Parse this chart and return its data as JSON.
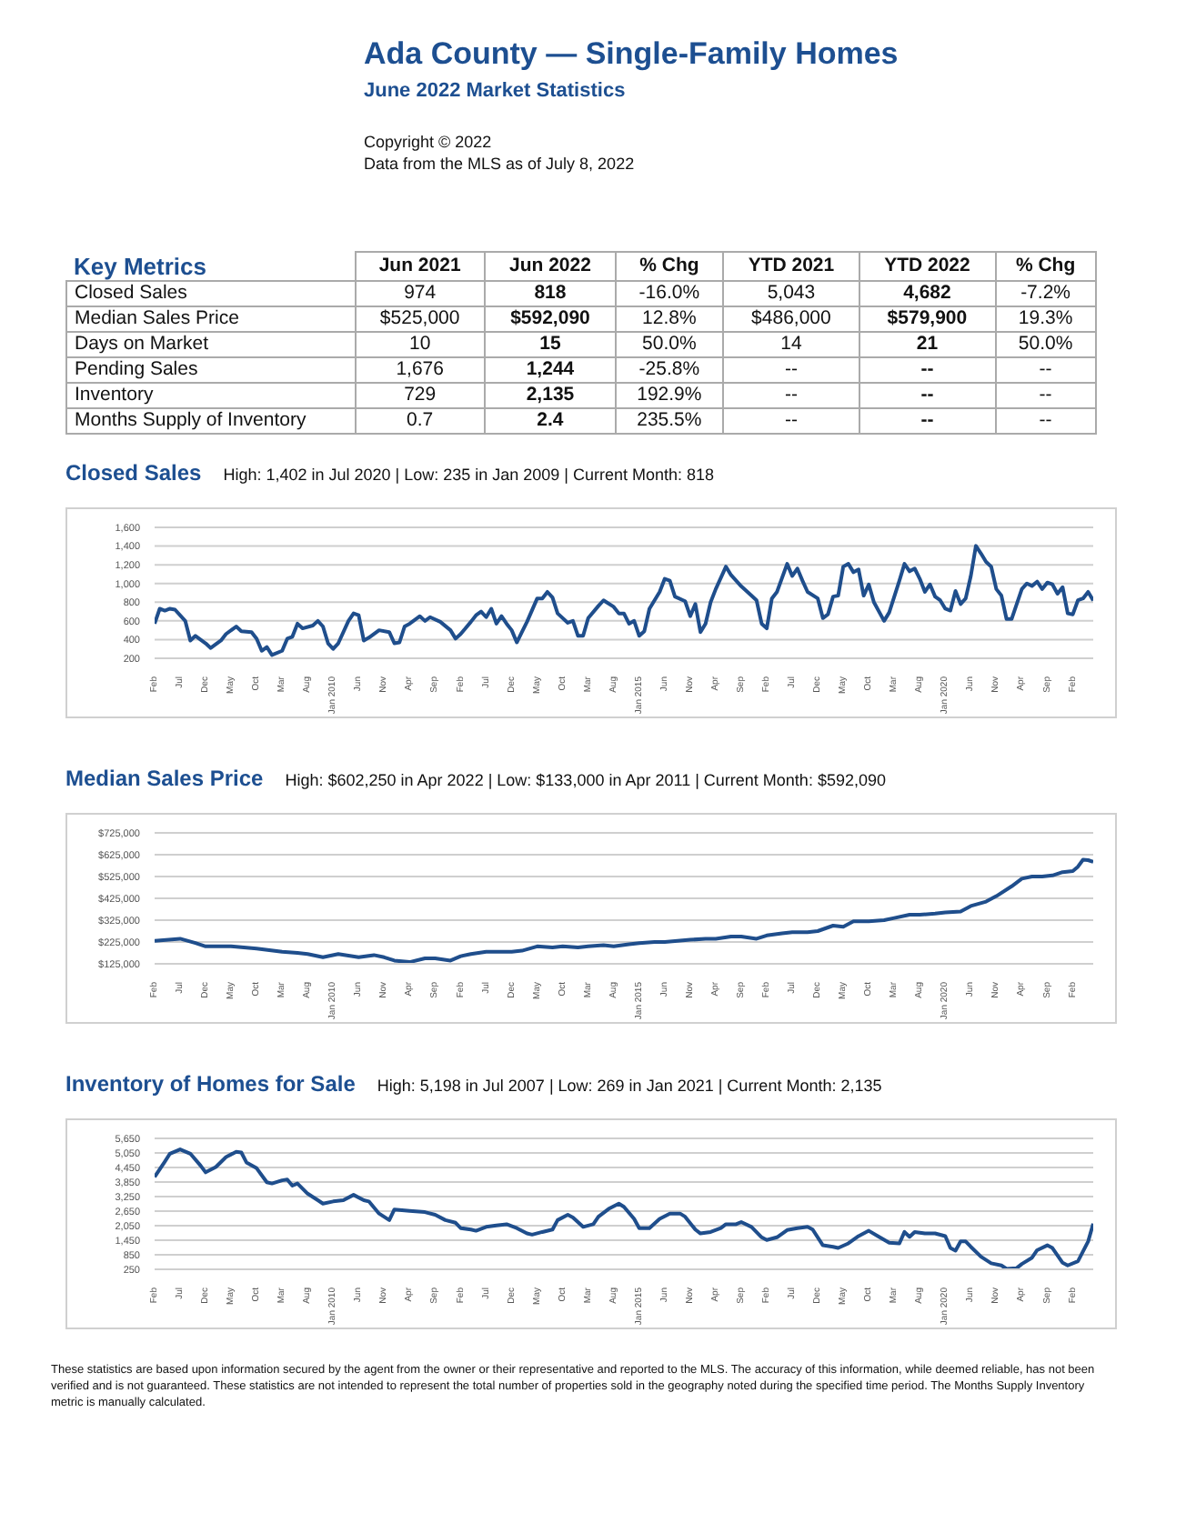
{
  "chart_data": [
    {
      "type": "other",
      "title": "Ada County — Single-Family Homes",
      "subtitle": "June 2022 Market Statistics",
      "annotations": [
        "Copyright © 2022",
        "Data from the MLS as of July 8, 2022"
      ]
    },
    {
      "type": "other",
      "title": "Key Metrics",
      "categories": [
        "Jun 2021",
        "Jun 2022",
        "% Chg",
        "YTD 2021",
        "YTD 2022",
        "% Chg"
      ],
      "y_categories": [
        "Closed Sales",
        "Median Sales Price",
        "Days on Market",
        "Pending Sales",
        "Inventory",
        "Months Supply of Inventory"
      ],
      "cell_labels": [
        [
          "974",
          "818",
          "-16.0%",
          "5,043",
          "4,682",
          "-7.2%"
        ],
        [
          "$525,000",
          "$592,090",
          "12.8%",
          "$486,000",
          "$579,900",
          "19.3%"
        ],
        [
          "10",
          "15",
          "50.0%",
          "14",
          "21",
          "50.0%"
        ],
        [
          "1,676",
          "1,244",
          "-25.8%",
          "--",
          "--",
          "--"
        ],
        [
          "729",
          "2,135",
          "192.9%",
          "--",
          "--",
          "--"
        ],
        [
          "0.7",
          "2.4",
          "235.5%",
          "--",
          "--",
          "--"
        ]
      ]
    },
    {
      "type": "line",
      "title": "Closed Sales",
      "subtitle": "High: 1,402 in Jul 2020  |  Low: 235 in Jan 2009  |  Current Month: 818",
      "color": "#1f4e8c",
      "grid": "y",
      "x": [
        "2007-02",
        "2007-03",
        "2007-04",
        "2007-05",
        "2007-06",
        "2007-08",
        "2007-09",
        "2007-10",
        "2007-12",
        "2008-01",
        "2008-03",
        "2008-04",
        "2008-06",
        "2008-07",
        "2008-09",
        "2008-10",
        "2008-11",
        "2008-12",
        "2009-01",
        "2009-03",
        "2009-04",
        "2009-05",
        "2009-06",
        "2009-07",
        "2009-09",
        "2009-10",
        "2009-11",
        "2009-12",
        "2010-01",
        "2010-02",
        "2010-04",
        "2010-05",
        "2010-06",
        "2010-07",
        "2010-08",
        "2010-10",
        "2010-12",
        "2011-01",
        "2011-02",
        "2011-03",
        "2011-04",
        "2011-06",
        "2011-07",
        "2011-08",
        "2011-10",
        "2011-12",
        "2012-01",
        "2012-02",
        "2012-04",
        "2012-05",
        "2012-06",
        "2012-07",
        "2012-08",
        "2012-09",
        "2012-10",
        "2012-11",
        "2012-12",
        "2013-01",
        "2013-02",
        "2013-03",
        "2013-05",
        "2013-06",
        "2013-07",
        "2013-08",
        "2013-09",
        "2013-11",
        "2013-12",
        "2014-01",
        "2014-02",
        "2014-03",
        "2014-05",
        "2014-06",
        "2014-08",
        "2014-09",
        "2014-10",
        "2014-11",
        "2014-12",
        "2015-01",
        "2015-02",
        "2015-03",
        "2015-05",
        "2015-06",
        "2015-07",
        "2015-08",
        "2015-10",
        "2015-11",
        "2015-12",
        "2016-01",
        "2016-02",
        "2016-03",
        "2016-04",
        "2016-06",
        "2016-07",
        "2016-08",
        "2016-09",
        "2016-11",
        "2016-12",
        "2017-01",
        "2017-02",
        "2017-03",
        "2017-04",
        "2017-06",
        "2017-07",
        "2017-08",
        "2017-09",
        "2017-10",
        "2017-12",
        "2018-01",
        "2018-02",
        "2018-03",
        "2018-04",
        "2018-05",
        "2018-06",
        "2018-07",
        "2018-08",
        "2018-09",
        "2018-10",
        "2018-11",
        "2019-01",
        "2019-02",
        "2019-03",
        "2019-04",
        "2019-05",
        "2019-06",
        "2019-07",
        "2019-08",
        "2019-09",
        "2019-10",
        "2019-11",
        "2019-12",
        "2020-01",
        "2020-02",
        "2020-03",
        "2020-04",
        "2020-05",
        "2020-06",
        "2020-07",
        "2020-08",
        "2020-09",
        "2020-10",
        "2020-11",
        "2020-12",
        "2021-01",
        "2021-02",
        "2021-04",
        "2021-05",
        "2021-06",
        "2021-07",
        "2021-08",
        "2021-09",
        "2021-10",
        "2021-11",
        "2021-12",
        "2022-01",
        "2022-02",
        "2022-03",
        "2022-04",
        "2022-05",
        "2022-06"
      ],
      "values": [
        570,
        730,
        710,
        730,
        720,
        600,
        390,
        440,
        360,
        310,
        390,
        460,
        540,
        490,
        480,
        410,
        280,
        320,
        235,
        280,
        410,
        430,
        570,
        520,
        550,
        600,
        540,
        360,
        300,
        360,
        600,
        680,
        660,
        390,
        420,
        500,
        480,
        360,
        370,
        540,
        570,
        650,
        600,
        640,
        590,
        500,
        410,
        460,
        590,
        660,
        700,
        640,
        730,
        570,
        650,
        570,
        500,
        370,
        480,
        590,
        840,
        840,
        910,
        850,
        680,
        580,
        600,
        440,
        440,
        630,
        760,
        820,
        750,
        680,
        680,
        570,
        600,
        440,
        490,
        730,
        910,
        1050,
        1030,
        860,
        810,
        650,
        780,
        480,
        570,
        800,
        940,
        1180,
        1090,
        1030,
        970,
        870,
        820,
        570,
        520,
        840,
        910,
        1210,
        1080,
        1160,
        1030,
        910,
        840,
        630,
        670,
        860,
        870,
        1180,
        1210,
        1120,
        1150,
        870,
        990,
        800,
        600,
        690,
        860,
        1030,
        1210,
        1130,
        1160,
        1050,
        910,
        990,
        860,
        820,
        730,
        710,
        920,
        780,
        840,
        1080,
        1402,
        1320,
        1230,
        1180,
        940,
        870,
        620,
        620,
        940,
        1000,
        974,
        1020,
        940,
        1010,
        990,
        890,
        960,
        680,
        670,
        820,
        840,
        910,
        818
      ],
      "xlim": [
        "2007-02",
        "2022-06"
      ],
      "xticks": [
        {
          "value": "2007-02",
          "label": "Feb"
        },
        {
          "value": "2007-07",
          "label": "Jul"
        },
        {
          "value": "2007-12",
          "label": "Dec"
        },
        {
          "value": "2008-05",
          "label": "May"
        },
        {
          "value": "2008-10",
          "label": "Oct"
        },
        {
          "value": "2009-03",
          "label": "Mar"
        },
        {
          "value": "2009-08",
          "label": "Aug"
        },
        {
          "value": "2010-01",
          "label": "Jan 2010"
        },
        {
          "value": "2010-06",
          "label": "Jun"
        },
        {
          "value": "2010-11",
          "label": "Nov"
        },
        {
          "value": "2011-04",
          "label": "Apr"
        },
        {
          "value": "2011-09",
          "label": "Sep"
        },
        {
          "value": "2012-02",
          "label": "Feb"
        },
        {
          "value": "2012-07",
          "label": "Jul"
        },
        {
          "value": "2012-12",
          "label": "Dec"
        },
        {
          "value": "2013-05",
          "label": "May"
        },
        {
          "value": "2013-10",
          "label": "Oct"
        },
        {
          "value": "2014-03",
          "label": "Mar"
        },
        {
          "value": "2014-08",
          "label": "Aug"
        },
        {
          "value": "2015-01",
          "label": "Jan 2015"
        },
        {
          "value": "2015-06",
          "label": "Jun"
        },
        {
          "value": "2015-11",
          "label": "Nov"
        },
        {
          "value": "2016-04",
          "label": "Apr"
        },
        {
          "value": "2016-09",
          "label": "Sep"
        },
        {
          "value": "2017-02",
          "label": "Feb"
        },
        {
          "value": "2017-07",
          "label": "Jul"
        },
        {
          "value": "2017-12",
          "label": "Dec"
        },
        {
          "value": "2018-05",
          "label": "May"
        },
        {
          "value": "2018-10",
          "label": "Oct"
        },
        {
          "value": "2019-03",
          "label": "Mar"
        },
        {
          "value": "2019-08",
          "label": "Aug"
        },
        {
          "value": "2020-01",
          "label": "Jan 2020"
        },
        {
          "value": "2020-06",
          "label": "Jun"
        },
        {
          "value": "2020-11",
          "label": "Nov"
        },
        {
          "value": "2021-04",
          "label": "Apr"
        },
        {
          "value": "2021-09",
          "label": "Sep"
        },
        {
          "value": "2022-02",
          "label": "Feb"
        }
      ],
      "ylim": [
        200,
        1600
      ],
      "yticks": [
        200,
        400,
        600,
        800,
        {
          "value": 1000,
          "label": "1,000"
        },
        {
          "value": 1200,
          "label": "1,200"
        },
        {
          "value": 1400,
          "label": "1,400"
        },
        {
          "value": 1600,
          "label": "1,600"
        }
      ]
    },
    {
      "type": "line",
      "title": "Median Sales Price",
      "subtitle": "High: $602,250 in Apr 2022  |  Low: $133,000 in Apr 2011  |  Current Month: $592,090",
      "color": "#1f4e8c",
      "grid": "y",
      "x": [
        "2007-02",
        "2007-07",
        "2007-10",
        "2007-12",
        "2008-05",
        "2008-10",
        "2009-03",
        "2009-06",
        "2009-08",
        "2009-11",
        "2010-02",
        "2010-06",
        "2010-09",
        "2010-11",
        "2011-01",
        "2011-04",
        "2011-07",
        "2011-09",
        "2011-12",
        "2012-02",
        "2012-04",
        "2012-07",
        "2012-12",
        "2013-02",
        "2013-05",
        "2013-08",
        "2013-10",
        "2014-01",
        "2014-03",
        "2014-06",
        "2014-08",
        "2014-11",
        "2015-01",
        "2015-04",
        "2015-06",
        "2015-11",
        "2016-02",
        "2016-04",
        "2016-07",
        "2016-09",
        "2016-12",
        "2017-02",
        "2017-05",
        "2017-07",
        "2017-10",
        "2017-12",
        "2018-03",
        "2018-05",
        "2018-07",
        "2018-10",
        "2019-01",
        "2019-03",
        "2019-06",
        "2019-08",
        "2019-11",
        "2020-01",
        "2020-04",
        "2020-06",
        "2020-09",
        "2020-11",
        "2021-02",
        "2021-04",
        "2021-06",
        "2021-08",
        "2021-10",
        "2021-12",
        "2022-02",
        "2022-03",
        "2022-04",
        "2022-05",
        "2022-06"
      ],
      "values": [
        230000,
        240000,
        220000,
        205000,
        205000,
        195000,
        180000,
        175000,
        170000,
        155000,
        170000,
        155000,
        165000,
        155000,
        140000,
        133000,
        150000,
        150000,
        140000,
        160000,
        170000,
        180000,
        180000,
        185000,
        205000,
        200000,
        205000,
        200000,
        205000,
        210000,
        205000,
        215000,
        220000,
        225000,
        225000,
        235000,
        240000,
        240000,
        250000,
        250000,
        240000,
        255000,
        265000,
        270000,
        270000,
        275000,
        300000,
        295000,
        320000,
        320000,
        325000,
        335000,
        350000,
        350000,
        355000,
        360000,
        365000,
        390000,
        410000,
        435000,
        480000,
        515000,
        525000,
        525000,
        530000,
        545000,
        550000,
        570000,
        602250,
        600000,
        592090
      ],
      "xlim": [
        "2007-02",
        "2022-06"
      ],
      "xticks": [
        {
          "value": "2007-02",
          "label": "Feb"
        },
        {
          "value": "2007-07",
          "label": "Jul"
        },
        {
          "value": "2007-12",
          "label": "Dec"
        },
        {
          "value": "2008-05",
          "label": "May"
        },
        {
          "value": "2008-10",
          "label": "Oct"
        },
        {
          "value": "2009-03",
          "label": "Mar"
        },
        {
          "value": "2009-08",
          "label": "Aug"
        },
        {
          "value": "2010-01",
          "label": "Jan 2010"
        },
        {
          "value": "2010-06",
          "label": "Jun"
        },
        {
          "value": "2010-11",
          "label": "Nov"
        },
        {
          "value": "2011-04",
          "label": "Apr"
        },
        {
          "value": "2011-09",
          "label": "Sep"
        },
        {
          "value": "2012-02",
          "label": "Feb"
        },
        {
          "value": "2012-07",
          "label": "Jul"
        },
        {
          "value": "2012-12",
          "label": "Dec"
        },
        {
          "value": "2013-05",
          "label": "May"
        },
        {
          "value": "2013-10",
          "label": "Oct"
        },
        {
          "value": "2014-03",
          "label": "Mar"
        },
        {
          "value": "2014-08",
          "label": "Aug"
        },
        {
          "value": "2015-01",
          "label": "Jan 2015"
        },
        {
          "value": "2015-06",
          "label": "Jun"
        },
        {
          "value": "2015-11",
          "label": "Nov"
        },
        {
          "value": "2016-04",
          "label": "Apr"
        },
        {
          "value": "2016-09",
          "label": "Sep"
        },
        {
          "value": "2017-02",
          "label": "Feb"
        },
        {
          "value": "2017-07",
          "label": "Jul"
        },
        {
          "value": "2017-12",
          "label": "Dec"
        },
        {
          "value": "2018-05",
          "label": "May"
        },
        {
          "value": "2018-10",
          "label": "Oct"
        },
        {
          "value": "2019-03",
          "label": "Mar"
        },
        {
          "value": "2019-08",
          "label": "Aug"
        },
        {
          "value": "2020-01",
          "label": "Jan 2020"
        },
        {
          "value": "2020-06",
          "label": "Jun"
        },
        {
          "value": "2020-11",
          "label": "Nov"
        },
        {
          "value": "2021-04",
          "label": "Apr"
        },
        {
          "value": "2021-09",
          "label": "Sep"
        },
        {
          "value": "2022-02",
          "label": "Feb"
        }
      ],
      "ylim": [
        125000,
        725000
      ],
      "yticks": [
        {
          "value": 125000,
          "label": "$125,000"
        },
        {
          "value": 225000,
          "label": "$225,000"
        },
        {
          "value": 325000,
          "label": "$325,000"
        },
        {
          "value": 425000,
          "label": "$425,000"
        },
        {
          "value": 525000,
          "label": "$525,000"
        },
        {
          "value": 625000,
          "label": "$625,000"
        },
        {
          "value": 725000,
          "label": "$725,000"
        }
      ]
    },
    {
      "type": "line",
      "title": "Inventory of Homes for Sale",
      "subtitle": "High: 5,198 in Jul 2007  |  Low: 269 in Jan 2021  |  Current Month: 2,135",
      "color": "#1f4e8c",
      "grid": "y",
      "x": [
        "2007-02",
        "2007-04",
        "2007-05",
        "2007-07",
        "2007-09",
        "2007-11",
        "2007-12",
        "2008-02",
        "2008-04",
        "2008-06",
        "2008-07",
        "2008-08",
        "2008-10",
        "2008-12",
        "2009-01",
        "2009-03",
        "2009-04",
        "2009-05",
        "2009-06",
        "2009-08",
        "2009-10",
        "2009-11",
        "2010-01",
        "2010-03",
        "2010-05",
        "2010-07",
        "2010-08",
        "2010-10",
        "2010-12",
        "2011-01",
        "2011-04",
        "2011-07",
        "2011-09",
        "2011-11",
        "2012-01",
        "2012-02",
        "2012-04",
        "2012-05",
        "2012-07",
        "2012-09",
        "2012-11",
        "2013-01",
        "2013-03",
        "2013-04",
        "2013-06",
        "2013-08",
        "2013-09",
        "2013-11",
        "2013-12",
        "2014-02",
        "2014-04",
        "2014-05",
        "2014-07",
        "2014-09",
        "2014-10",
        "2014-12",
        "2015-01",
        "2015-03",
        "2015-05",
        "2015-07",
        "2015-09",
        "2015-10",
        "2015-12",
        "2016-01",
        "2016-03",
        "2016-05",
        "2016-06",
        "2016-08",
        "2016-09",
        "2016-11",
        "2017-01",
        "2017-02",
        "2017-04",
        "2017-06",
        "2017-08",
        "2017-10",
        "2017-11",
        "2018-01",
        "2018-03",
        "2018-04",
        "2018-06",
        "2018-08",
        "2018-10",
        "2018-12",
        "2019-02",
        "2019-04",
        "2019-05",
        "2019-06",
        "2019-07",
        "2019-09",
        "2019-11",
        "2020-01",
        "2020-02",
        "2020-03",
        "2020-04",
        "2020-05",
        "2020-06",
        "2020-08",
        "2020-10",
        "2020-12",
        "2021-01",
        "2021-03",
        "2021-04",
        "2021-06",
        "2021-07",
        "2021-09",
        "2021-10",
        "2021-12",
        "2022-01",
        "2022-03",
        "2022-05",
        "2022-06"
      ],
      "values": [
        4060,
        4690,
        5020,
        5198,
        5020,
        4530,
        4250,
        4470,
        4880,
        5100,
        5070,
        4660,
        4420,
        3840,
        3790,
        3920,
        3950,
        3700,
        3790,
        3370,
        3100,
        2960,
        3050,
        3100,
        3320,
        3100,
        3050,
        2550,
        2280,
        2720,
        2660,
        2610,
        2500,
        2280,
        2170,
        1950,
        1890,
        1840,
        2000,
        2060,
        2110,
        1950,
        1730,
        1680,
        1790,
        1890,
        2280,
        2500,
        2390,
        2000,
        2110,
        2420,
        2740,
        2960,
        2830,
        2330,
        1950,
        1950,
        2330,
        2550,
        2550,
        2420,
        1890,
        1730,
        1790,
        1950,
        2110,
        2110,
        2200,
        2000,
        1570,
        1460,
        1570,
        1870,
        1950,
        2000,
        1890,
        1240,
        1180,
        1130,
        1320,
        1620,
        1840,
        1590,
        1350,
        1320,
        1790,
        1590,
        1790,
        1730,
        1730,
        1620,
        1130,
        1020,
        1400,
        1400,
        1180,
        770,
        500,
        410,
        269,
        300,
        470,
        729,
        1040,
        1240,
        1130,
        520,
        410,
        580,
        1400,
        2135
      ],
      "xlim": [
        "2007-02",
        "2022-06"
      ],
      "xticks": [
        {
          "value": "2007-02",
          "label": "Feb"
        },
        {
          "value": "2007-07",
          "label": "Jul"
        },
        {
          "value": "2007-12",
          "label": "Dec"
        },
        {
          "value": "2008-05",
          "label": "May"
        },
        {
          "value": "2008-10",
          "label": "Oct"
        },
        {
          "value": "2009-03",
          "label": "Mar"
        },
        {
          "value": "2009-08",
          "label": "Aug"
        },
        {
          "value": "2010-01",
          "label": "Jan 2010"
        },
        {
          "value": "2010-06",
          "label": "Jun"
        },
        {
          "value": "2010-11",
          "label": "Nov"
        },
        {
          "value": "2011-04",
          "label": "Apr"
        },
        {
          "value": "2011-09",
          "label": "Sep"
        },
        {
          "value": "2012-02",
          "label": "Feb"
        },
        {
          "value": "2012-07",
          "label": "Jul"
        },
        {
          "value": "2012-12",
          "label": "Dec"
        },
        {
          "value": "2013-05",
          "label": "May"
        },
        {
          "value": "2013-10",
          "label": "Oct"
        },
        {
          "value": "2014-03",
          "label": "Mar"
        },
        {
          "value": "2014-08",
          "label": "Aug"
        },
        {
          "value": "2015-01",
          "label": "Jan 2015"
        },
        {
          "value": "2015-06",
          "label": "Jun"
        },
        {
          "value": "2015-11",
          "label": "Nov"
        },
        {
          "value": "2016-04",
          "label": "Apr"
        },
        {
          "value": "2016-09",
          "label": "Sep"
        },
        {
          "value": "2017-02",
          "label": "Feb"
        },
        {
          "value": "2017-07",
          "label": "Jul"
        },
        {
          "value": "2017-12",
          "label": "Dec"
        },
        {
          "value": "2018-05",
          "label": "May"
        },
        {
          "value": "2018-10",
          "label": "Oct"
        },
        {
          "value": "2019-03",
          "label": "Mar"
        },
        {
          "value": "2019-08",
          "label": "Aug"
        },
        {
          "value": "2020-01",
          "label": "Jan 2020"
        },
        {
          "value": "2020-06",
          "label": "Jun"
        },
        {
          "value": "2020-11",
          "label": "Nov"
        },
        {
          "value": "2021-04",
          "label": "Apr"
        },
        {
          "value": "2021-09",
          "label": "Sep"
        },
        {
          "value": "2022-02",
          "label": "Feb"
        }
      ],
      "ylim": [
        250,
        5650
      ],
      "yticks": [
        250,
        850,
        {
          "value": 1450,
          "label": "1,450"
        },
        {
          "value": 2050,
          "label": "2,050"
        },
        {
          "value": 2650,
          "label": "2,650"
        },
        {
          "value": 3250,
          "label": "3,250"
        },
        {
          "value": 3850,
          "label": "3,850"
        },
        {
          "value": 4450,
          "label": "4,450"
        },
        {
          "value": 5050,
          "label": "5,050"
        },
        {
          "value": 5650,
          "label": "5,650"
        }
      ],
      "annotations": [
        "These statistics are based upon information secured by the agent from the owner or their representative and reported to the MLS. The accuracy of this information, while deemed reliable, has not been verified and is not guaranteed. These statistics are not intended to represent the total number of properties sold in the geography noted during the specified time period. The Months Supply Inventory metric is manually calculated."
      ]
    }
  ]
}
